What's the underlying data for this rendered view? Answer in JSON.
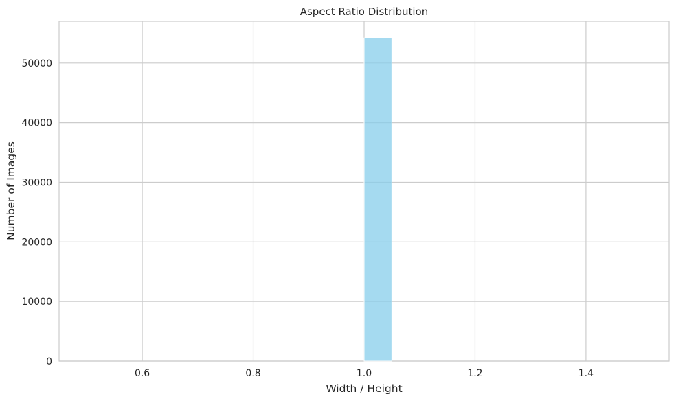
{
  "chart_data": {
    "type": "bar",
    "title": "Aspect Ratio Distribution",
    "xlabel": "Width / Height",
    "ylabel": "Number of Images",
    "xlim": [
      0.45,
      1.55
    ],
    "ylim": [
      0,
      57000
    ],
    "x_ticks": [
      "0.6",
      "0.8",
      "1.0",
      "1.2",
      "1.4"
    ],
    "y_ticks": [
      "0",
      "10000",
      "20000",
      "30000",
      "40000",
      "50000"
    ],
    "bins": [
      {
        "x_start": 1.0,
        "x_end": 1.05,
        "count": 54200
      }
    ],
    "grid": true,
    "bar_color": "#87CEEB"
  }
}
